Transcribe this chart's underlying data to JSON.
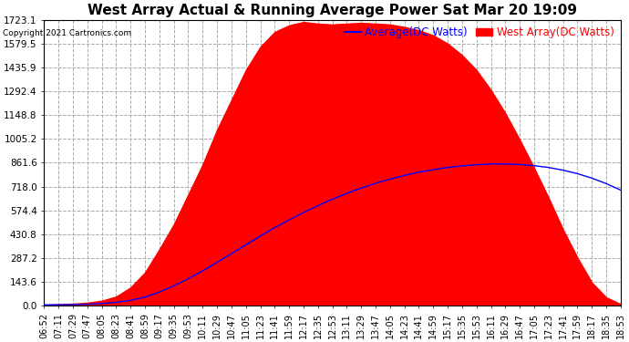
{
  "title": "West Array Actual & Running Average Power Sat Mar 20 19:09",
  "copyright": "Copyright 2021 Cartronics.com",
  "legend_avg": "Average(DC Watts)",
  "legend_west": "West Array(DC Watts)",
  "ymax": 1723.1,
  "yticks": [
    0.0,
    143.6,
    287.2,
    430.8,
    574.4,
    718.0,
    861.6,
    1005.2,
    1148.8,
    1292.4,
    1435.9,
    1579.5,
    1723.1
  ],
  "ytick_labels": [
    "0.0",
    "143.6",
    "287.2",
    "430.8",
    "574.4",
    "718.0",
    "861.6",
    "1005.2",
    "1148.8",
    "1292.4",
    "1435.9",
    "1579.5",
    "1723.1"
  ],
  "x_labels": [
    "06:52",
    "07:11",
    "07:29",
    "07:47",
    "08:05",
    "08:23",
    "08:41",
    "08:59",
    "09:17",
    "09:35",
    "09:53",
    "10:11",
    "10:29",
    "10:47",
    "11:05",
    "11:23",
    "11:41",
    "11:59",
    "12:17",
    "12:35",
    "12:53",
    "13:11",
    "13:29",
    "13:47",
    "14:05",
    "14:23",
    "14:41",
    "14:59",
    "15:17",
    "15:35",
    "15:53",
    "16:11",
    "16:29",
    "16:47",
    "17:05",
    "17:23",
    "17:41",
    "17:59",
    "18:17",
    "18:35",
    "18:53"
  ],
  "west_array": [
    5,
    8,
    12,
    18,
    30,
    55,
    110,
    200,
    340,
    490,
    670,
    850,
    1060,
    1240,
    1420,
    1560,
    1650,
    1690,
    1710,
    1700,
    1695,
    1700,
    1705,
    1700,
    1695,
    1680,
    1660,
    1630,
    1580,
    1510,
    1420,
    1300,
    1160,
    1000,
    830,
    650,
    460,
    290,
    140,
    50,
    10
  ],
  "avg_array": [
    5,
    6,
    7,
    9,
    13,
    20,
    32,
    52,
    82,
    120,
    163,
    210,
    261,
    314,
    367,
    420,
    470,
    517,
    562,
    603,
    642,
    677,
    709,
    738,
    763,
    785,
    805,
    820,
    833,
    843,
    850,
    854,
    854,
    851,
    844,
    833,
    817,
    796,
    769,
    736,
    697
  ],
  "bg_color": "#ffffff",
  "plot_bg": "#ffffff",
  "grid_color": "#aaaaaa",
  "area_color": "#ff0000",
  "line_color": "#0000ff",
  "title_color": "#000000",
  "copyright_color": "#000000",
  "legend_avg_color": "#0000ff",
  "legend_west_color": "#ff0000",
  "title_fontsize": 11,
  "tick_fontsize": 7.5,
  "legend_fontsize": 8.5,
  "figwidth": 6.9,
  "figheight": 3.75,
  "dpi": 100
}
